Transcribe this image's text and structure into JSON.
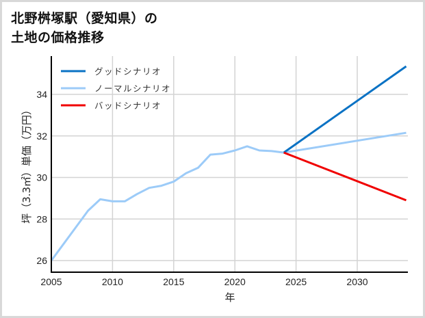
{
  "title": "北野桝塚駅（愛知県）の\n土地の価格推移",
  "chart_data": {
    "type": "line",
    "title": "北野桝塚駅（愛知県）の土地の価格推移",
    "xlabel": "年",
    "ylabel": "坪（3.3㎡）単価（万円）",
    "xlim": [
      2005,
      2034
    ],
    "ylim": [
      25.6,
      35.5
    ],
    "xticks": [
      2005,
      2010,
      2015,
      2020,
      2025,
      2030
    ],
    "yticks": [
      26,
      28,
      30,
      32,
      34
    ],
    "grid": true,
    "legend_position": "upper left",
    "series": [
      {
        "name": "グッドシナリオ",
        "color": "#0a72c4",
        "x": [
          2024,
          2034
        ],
        "values": [
          31.2,
          35.35
        ]
      },
      {
        "name": "ノーマルシナリオ",
        "color": "#9ccbf8",
        "x": [
          2005,
          2006,
          2007,
          2008,
          2009,
          2010,
          2011,
          2012,
          2013,
          2014,
          2015,
          2016,
          2017,
          2018,
          2019,
          2020,
          2021,
          2022,
          2023,
          2024,
          2034
        ],
        "values": [
          26.0,
          26.8,
          27.6,
          28.4,
          28.95,
          28.85,
          28.85,
          29.2,
          29.5,
          29.6,
          29.8,
          30.2,
          30.47,
          31.1,
          31.15,
          31.3,
          31.5,
          31.3,
          31.27,
          31.2,
          32.15
        ]
      },
      {
        "name": "バッドシナリオ",
        "color": "#f00000",
        "x": [
          2024,
          2034
        ],
        "values": [
          31.2,
          28.9
        ]
      }
    ]
  }
}
